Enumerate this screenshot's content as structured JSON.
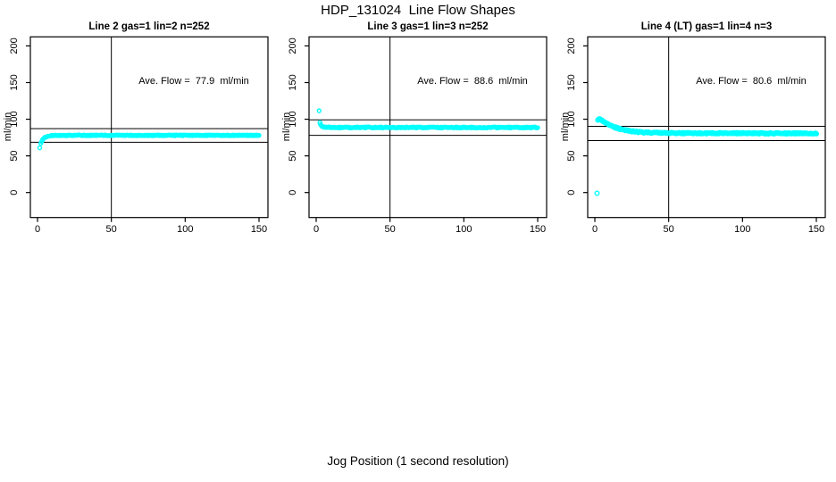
{
  "page": {
    "main_title": "HDP_131024  Line Flow Shapes"
  },
  "chart_data": {
    "type": "scatter",
    "title": "HDP_131024  Line Flow Shapes",
    "xlabel": "Jog Position (1 second resolution)",
    "ylabel": "ml/min",
    "x_ticks": [
      0,
      50,
      100,
      150
    ],
    "y_ticks": [
      0,
      50,
      100,
      150,
      200
    ],
    "xlim": [
      -6,
      156
    ],
    "ylim": [
      -34,
      212
    ],
    "grid": false,
    "point_color": "#00FFFF",
    "line_color": "#000000",
    "panels": [
      {
        "title": "Line 2 gas=1 lin=2 n=252",
        "annotation": "Ave. Flow =  77.9  ml/min",
        "ave_flow": 77.9,
        "n": 252,
        "render_count": 250,
        "vline_x": 50,
        "hlines": [
          87.2,
          68.6
        ],
        "steady_y": 78,
        "jitter": 0.55,
        "marker_r": 2.0,
        "outliers": [
          [
            1.5,
            61
          ]
        ],
        "anchors": [
          [
            2.2,
            66.5
          ],
          [
            2.6,
            68.5
          ],
          [
            3,
            70.5
          ],
          [
            3.6,
            72.5
          ],
          [
            4.2,
            74
          ],
          [
            5,
            75.3
          ],
          [
            6,
            76.3
          ],
          [
            7,
            77
          ],
          [
            8.5,
            77.5
          ],
          [
            10,
            77.8
          ],
          [
            13,
            78
          ],
          [
            20,
            78
          ],
          [
            40,
            78
          ],
          [
            70,
            78
          ],
          [
            110,
            78
          ],
          [
            150,
            78.1
          ]
        ]
      },
      {
        "title": "Line 3 gas=1 lin=3 n=252",
        "annotation": "Ave. Flow =  88.6  ml/min",
        "ave_flow": 88.6,
        "n": 252,
        "render_count": 250,
        "vline_x": 50,
        "hlines": [
          99.2,
          78.0
        ],
        "steady_y": 88.8,
        "jitter": 0.7,
        "marker_r": 2.0,
        "outliers": [
          [
            2,
            111.5
          ],
          [
            2.5,
            95.5
          ]
        ],
        "anchors": [
          [
            3,
            92.5
          ],
          [
            3.6,
            91
          ],
          [
            4.2,
            90.2
          ],
          [
            5,
            89.6
          ],
          [
            6,
            89.2
          ],
          [
            8,
            89
          ],
          [
            10,
            88.9
          ],
          [
            14,
            88.8
          ],
          [
            25,
            88.8
          ],
          [
            50,
            88.8
          ],
          [
            90,
            88.7
          ],
          [
            150,
            88.7
          ]
        ]
      },
      {
        "title": "Line 4 (LT) gas=1 lin=4 n=3",
        "annotation": "Ave. Flow =  80.6  ml/min",
        "ave_flow": 80.6,
        "n": 3,
        "render_count": 250,
        "vline_x": 50,
        "hlines": [
          90.3,
          70.9
        ],
        "steady_y": 81,
        "jitter": 0.8,
        "marker_r": 2.3,
        "outliers": [
          [
            1.5,
            -1
          ]
        ],
        "anchors": [
          [
            2,
            99.5
          ],
          [
            2.6,
            100.3
          ],
          [
            3.2,
            100
          ],
          [
            4,
            99.2
          ],
          [
            5,
            98
          ],
          [
            6,
            96.7
          ],
          [
            7.5,
            94.8
          ],
          [
            9,
            93
          ],
          [
            11,
            91
          ],
          [
            13,
            89.4
          ],
          [
            15,
            88
          ],
          [
            18,
            86.2
          ],
          [
            21,
            84.9
          ],
          [
            24,
            83.9
          ],
          [
            28,
            82.9
          ],
          [
            32,
            82.2
          ],
          [
            37,
            81.7
          ],
          [
            43,
            81.3
          ],
          [
            50,
            81.1
          ],
          [
            60,
            81
          ],
          [
            80,
            80.9
          ],
          [
            110,
            80.8
          ],
          [
            150,
            80.7
          ]
        ]
      }
    ]
  }
}
